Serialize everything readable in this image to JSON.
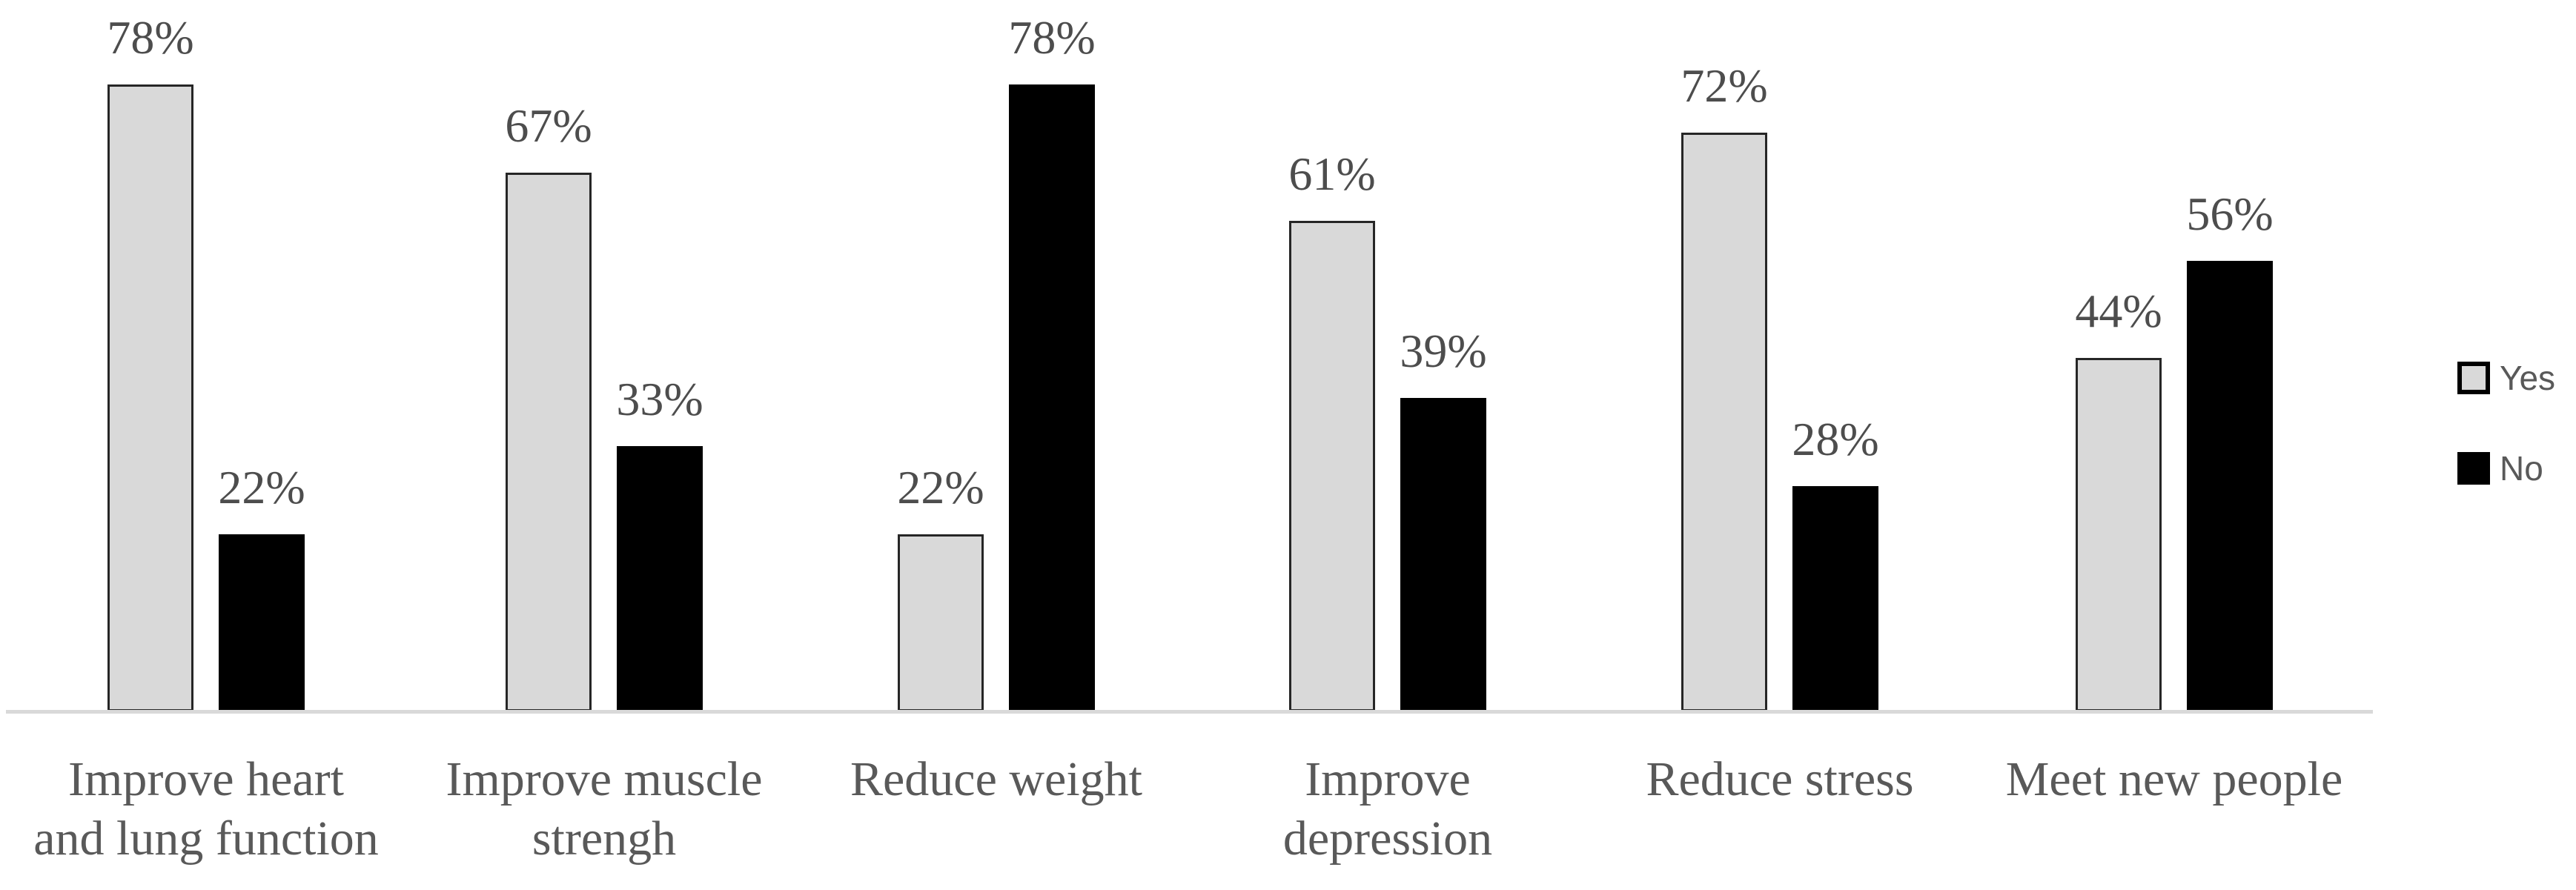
{
  "chart_data": {
    "type": "bar",
    "title": "",
    "xlabel": "",
    "ylabel": "",
    "ylim": [
      0,
      100
    ],
    "grid": false,
    "legend_position": "right",
    "value_unit": "%",
    "categories": [
      "Improve heart and lung function",
      "Improve muscle strengh",
      "Reduce weight",
      "Improve depression",
      "Reduce stress",
      "Meet new people"
    ],
    "category_display_lines": [
      [
        "Improve heart",
        "and lung function"
      ],
      [
        "Improve muscle",
        "strengh"
      ],
      [
        "Reduce weight"
      ],
      [
        "Improve",
        "depression"
      ],
      [
        "Reduce stress"
      ],
      [
        "Meet new people"
      ]
    ],
    "series": [
      {
        "name": "Yes",
        "values": [
          78,
          67,
          22,
          61,
          72,
          44
        ],
        "labels": [
          "78%",
          "67%",
          "22%",
          "61%",
          "72%",
          "44%"
        ],
        "color": "#d9d9d9",
        "border_color": "#262626"
      },
      {
        "name": "No",
        "values": [
          22,
          33,
          78,
          39,
          28,
          56
        ],
        "labels": [
          "22%",
          "33%",
          "78%",
          "39%",
          "28%",
          "56%"
        ],
        "color": "#000000",
        "border_color": "#000000"
      }
    ],
    "colors": {
      "axis_line": "#d9d9d9",
      "data_label_text": "#4d4d4d",
      "category_label_text": "#595959",
      "legend_text": "#595959",
      "background": "#ffffff"
    }
  }
}
